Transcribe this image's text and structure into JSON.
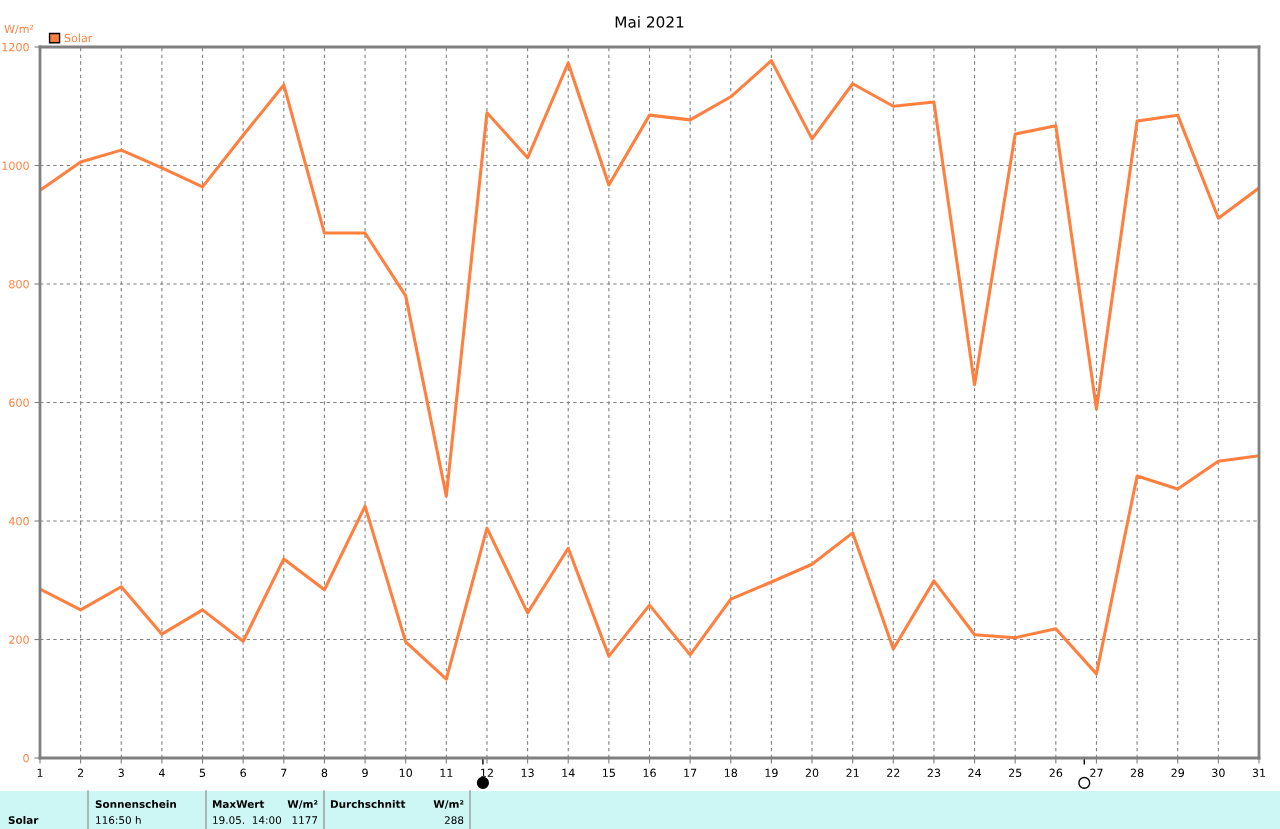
{
  "chart_data": {
    "type": "line",
    "title": "Mai 2021",
    "ylabel": "W/m²",
    "x": [
      1,
      2,
      3,
      4,
      5,
      6,
      7,
      8,
      9,
      10,
      11,
      12,
      13,
      14,
      15,
      16,
      17,
      18,
      19,
      20,
      21,
      22,
      23,
      24,
      25,
      26,
      27,
      28,
      29,
      30,
      31
    ],
    "series": [
      {
        "name": "Solar",
        "color": "#ff7f3f",
        "values": [
          958,
          1006,
          1026,
          996,
          964,
          1051,
          1136,
          886,
          886,
          780,
          442,
          1089,
          1013,
          1173,
          967,
          1085,
          1077,
          1116,
          1177,
          1045,
          1138,
          1100,
          1107,
          630,
          1053,
          1067,
          589,
          1075,
          1085,
          911,
          962
        ]
      },
      {
        "color": "#ff7f3f",
        "values": [
          285,
          250,
          289,
          209,
          250,
          197,
          336,
          284,
          425,
          196,
          133,
          388,
          245,
          354,
          172,
          258,
          174,
          268,
          297,
          327,
          380,
          184,
          299,
          208,
          203,
          218,
          142,
          476,
          454,
          501,
          510
        ]
      }
    ],
    "xlim": [
      1,
      31
    ],
    "xticks": [
      1,
      2,
      3,
      4,
      5,
      6,
      7,
      8,
      9,
      10,
      11,
      12,
      13,
      14,
      15,
      16,
      17,
      18,
      19,
      20,
      21,
      22,
      23,
      24,
      25,
      26,
      27,
      28,
      29,
      30,
      31
    ],
    "ylim": [
      0,
      1200
    ],
    "yticks": [
      0,
      200,
      400,
      600,
      800,
      1000,
      1200
    ],
    "grid": true,
    "legend": "top left",
    "line_style": "solid",
    "annotations": [
      "Solar",
      "Sonnenschein",
      "116:50 h",
      "MaxWert",
      "W/m²",
      "19.05.  14:00",
      "1177",
      "Durchschnitt",
      "W/m²",
      "288"
    ]
  }
}
